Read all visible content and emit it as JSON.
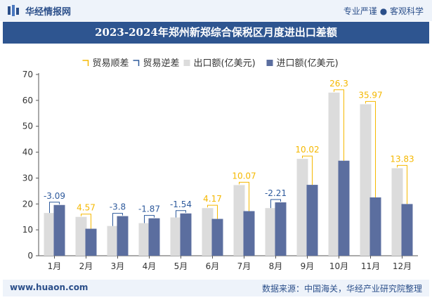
{
  "header": {
    "brand": "华经情报网",
    "tagline": "专业严谨 ● 客观科学"
  },
  "footer": {
    "site": "www.huaon.com",
    "source": "数据来源：中国海关，华经产业研究院整理"
  },
  "colors": {
    "header_bg": "#eef3fa",
    "title_bg": "#2e5590",
    "export_bar": "#dcdcdc",
    "import_bar": "#5b6e9f",
    "surplus": "#f5b800",
    "deficit": "#2e5a9c"
  },
  "chart_data": {
    "type": "bar",
    "title": "2023-2024年郑州新郑综合保税区月度进出口差额",
    "categories": [
      "1月",
      "2月",
      "3月",
      "4月",
      "5月",
      "6月",
      "7月",
      "8月",
      "9月",
      "10月",
      "11月",
      "12月"
    ],
    "series": [
      {
        "name": "出口额(亿美元)",
        "values": [
          16.5,
          15.0,
          11.5,
          12.6,
          14.8,
          18.4,
          27.3,
          18.4,
          37.4,
          63.0,
          58.5,
          33.8
        ]
      },
      {
        "name": "进口额(亿美元)",
        "values": [
          19.6,
          10.43,
          15.3,
          14.47,
          16.34,
          14.23,
          17.23,
          20.61,
          27.38,
          36.7,
          22.53,
          19.97
        ]
      }
    ],
    "balance": [
      {
        "type": "deficit",
        "label": "-3.09"
      },
      {
        "type": "surplus",
        "label": "4.57"
      },
      {
        "type": "deficit",
        "label": "-3.8"
      },
      {
        "type": "deficit",
        "label": "-1.87"
      },
      {
        "type": "deficit",
        "label": "-1.54"
      },
      {
        "type": "surplus",
        "label": "4.17"
      },
      {
        "type": "surplus",
        "label": "10.07"
      },
      {
        "type": "deficit",
        "label": "-2.21"
      },
      {
        "type": "surplus",
        "label": "10.02"
      },
      {
        "type": "surplus",
        "label": "26.3"
      },
      {
        "type": "surplus",
        "label": "35.97"
      },
      {
        "type": "surplus",
        "label": "13.83"
      }
    ],
    "legend": [
      "贸易顺差",
      "贸易逆差",
      "出口额(亿美元)",
      "进口额(亿美元)"
    ],
    "legend_position": "top",
    "ylim": [
      0,
      70
    ],
    "yticks": [
      0,
      10,
      20,
      30,
      40,
      50,
      60,
      70
    ],
    "grid": false
  }
}
